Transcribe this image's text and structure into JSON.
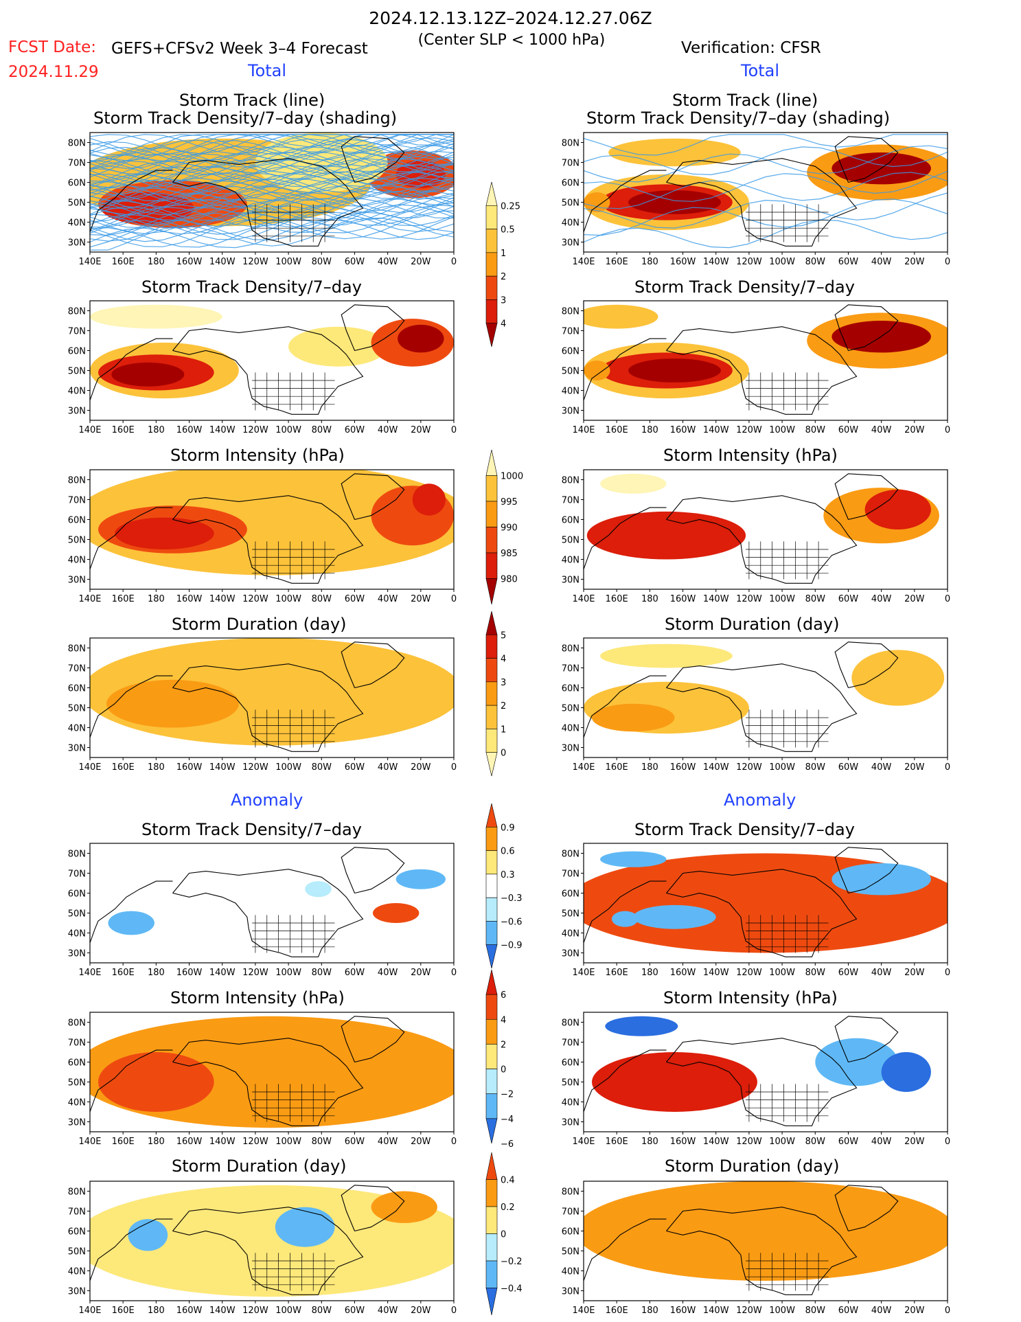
{
  "header": {
    "title": "2024.12.13.12Z–2024.12.27.06Z",
    "subtitle": "(Center SLP < 1000 hPa)",
    "fcst_label": "FCST Date:",
    "fcst_date": "2024.11.29",
    "forecast_label": "GEFS+CFSv2 Week 3–4 Forecast",
    "verification_label": "Verification: CFSR"
  },
  "sections": {
    "total": "Total",
    "anomaly": "Anomaly"
  },
  "panel_titles": {
    "storm_track_line": "Storm Track (line)",
    "storm_track_density_shading": "Storm Track Density/7–day (shading)",
    "storm_track_density": "Storm Track Density/7–day",
    "storm_intensity": "Storm Intensity (hPa)",
    "storm_duration": "Storm Duration (day)"
  },
  "colors": {
    "red_text": "#ff2020",
    "blue_text": "#2040ff",
    "darkred": "#a50000",
    "red": "#dc1e0a",
    "redorange": "#ee4a10",
    "orange": "#fa9b14",
    "lightorange": "#fcc23a",
    "yellow": "#fde87a",
    "lightyellow": "#fef5b6",
    "lightblue": "#b6ecfb",
    "skyblue": "#5fb8f5",
    "blue": "#2a6ee0",
    "trackline": "#3a9ae6"
  },
  "chart_data": {
    "type": "heatmap",
    "map": {
      "x_ticks": [
        "140E",
        "160E",
        "180",
        "160W",
        "140W",
        "120W",
        "100W",
        "80W",
        "60W",
        "40W",
        "20W",
        "0"
      ],
      "y_ticks": [
        "80N",
        "70N",
        "60N",
        "50N",
        "40N",
        "30N"
      ],
      "lon_range": [
        140,
        360
      ],
      "lat_range": [
        25,
        85
      ]
    },
    "colorbars": [
      {
        "name": "storm_track_density_total",
        "labels": [
          "0.25",
          "0.5",
          "1",
          "2",
          "3",
          "4"
        ],
        "colors": [
          "#fef5b6",
          "#fde87a",
          "#fcc23a",
          "#fa9b14",
          "#ee4a10",
          "#dc1e0a",
          "#a50000"
        ]
      },
      {
        "name": "storm_intensity_total",
        "labels": [
          "1000",
          "995",
          "990",
          "985",
          "980"
        ],
        "colors": [
          "#fef5b6",
          "#fcc23a",
          "#fa9b14",
          "#ee4a10",
          "#dc1e0a",
          "#a50000"
        ]
      },
      {
        "name": "storm_duration_total",
        "labels": [
          "5",
          "4",
          "3",
          "2",
          "1",
          "0"
        ],
        "colors": [
          "#a50000",
          "#dc1e0a",
          "#ee4a10",
          "#fa9b14",
          "#fcc23a",
          "#fde87a",
          "#fef5b6"
        ]
      },
      {
        "name": "storm_track_density_anomaly",
        "labels": [
          "0.9",
          "0.6",
          "0.3",
          "−0.3",
          "−0.6",
          "−0.9"
        ],
        "colors": [
          "#ee4a10",
          "#fa9b14",
          "#fde87a",
          "#ffffff",
          "#b6ecfb",
          "#5fb8f5",
          "#2a6ee0"
        ]
      },
      {
        "name": "storm_intensity_anomaly",
        "labels": [
          "6",
          "4",
          "2",
          "0",
          "−2",
          "−4",
          "−6"
        ],
        "colors": [
          "#dc1e0a",
          "#ee4a10",
          "#fa9b14",
          "#fde87a",
          "#b6ecfb",
          "#5fb8f5",
          "#2a6ee0"
        ]
      },
      {
        "name": "storm_duration_anomaly",
        "labels": [
          "0.4",
          "0.2",
          "0",
          "−0.2",
          "−0.4"
        ],
        "colors": [
          "#ee4a10",
          "#fa9b14",
          "#fde87a",
          "#b6ecfb",
          "#5fb8f5",
          "#2a6ee0"
        ]
      }
    ],
    "panels": [
      {
        "id": "fc-track",
        "column": "forecast",
        "section": "total",
        "variable": "storm_track",
        "blobs": [
          {
            "lon": 220,
            "lat": 60,
            "rlon": 90,
            "rlat": 22,
            "level": 3
          },
          {
            "lon": 190,
            "lat": 49,
            "rlon": 45,
            "rlat": 12,
            "level": 5
          },
          {
            "lon": 175,
            "lat": 47,
            "rlon": 28,
            "rlat": 8,
            "level": 6
          },
          {
            "lon": 335,
            "lat": 64,
            "rlon": 28,
            "rlat": 12,
            "level": 5
          },
          {
            "lon": 340,
            "lat": 64,
            "rlon": 15,
            "rlat": 7,
            "level": 6
          },
          {
            "lon": 280,
            "lat": 70,
            "rlon": 40,
            "rlat": 15,
            "level": 2
          }
        ]
      },
      {
        "id": "obs-track",
        "column": "verification",
        "section": "total",
        "variable": "storm_track",
        "blobs": [
          {
            "lon": 190,
            "lat": 50,
            "rlon": 50,
            "rlat": 14,
            "level": 3
          },
          {
            "lon": 190,
            "lat": 50,
            "rlon": 40,
            "rlat": 9,
            "level": 6
          },
          {
            "lon": 195,
            "lat": 50,
            "rlon": 28,
            "rlat": 6,
            "level": 7
          },
          {
            "lon": 320,
            "lat": 65,
            "rlon": 45,
            "rlat": 14,
            "level": 4
          },
          {
            "lon": 320,
            "lat": 67,
            "rlon": 30,
            "rlat": 8,
            "level": 7
          },
          {
            "lon": 195,
            "lat": 75,
            "rlon": 40,
            "rlat": 7,
            "level": 3
          },
          {
            "lon": 148,
            "lat": 50,
            "rlon": 8,
            "rlat": 5,
            "level": 4
          }
        ]
      },
      {
        "id": "fc-density",
        "column": "forecast",
        "section": "total",
        "variable": "storm_track_density",
        "blobs": [
          {
            "lon": 180,
            "lat": 77,
            "rlon": 40,
            "rlat": 6,
            "level": 1
          },
          {
            "lon": 185,
            "lat": 50,
            "rlon": 45,
            "rlat": 14,
            "level": 3
          },
          {
            "lon": 180,
            "lat": 49,
            "rlon": 35,
            "rlat": 9,
            "level": 6
          },
          {
            "lon": 175,
            "lat": 48,
            "rlon": 22,
            "rlat": 6,
            "level": 7
          },
          {
            "lon": 290,
            "lat": 62,
            "rlon": 30,
            "rlat": 10,
            "level": 2
          },
          {
            "lon": 335,
            "lat": 64,
            "rlon": 25,
            "rlat": 12,
            "level": 5
          },
          {
            "lon": 340,
            "lat": 66,
            "rlon": 14,
            "rlat": 7,
            "level": 7
          }
        ]
      },
      {
        "id": "obs-density",
        "column": "verification",
        "section": "total",
        "variable": "storm_track_density",
        "blobs": [
          {
            "lon": 190,
            "lat": 50,
            "rlon": 50,
            "rlat": 14,
            "level": 3
          },
          {
            "lon": 190,
            "lat": 50,
            "rlon": 40,
            "rlat": 9,
            "level": 6
          },
          {
            "lon": 195,
            "lat": 50,
            "rlon": 28,
            "rlat": 6,
            "level": 7
          },
          {
            "lon": 320,
            "lat": 65,
            "rlon": 45,
            "rlat": 14,
            "level": 4
          },
          {
            "lon": 320,
            "lat": 67,
            "rlon": 30,
            "rlat": 8,
            "level": 7
          },
          {
            "lon": 160,
            "lat": 77,
            "rlon": 25,
            "rlat": 6,
            "level": 3
          },
          {
            "lon": 148,
            "lat": 50,
            "rlon": 8,
            "rlat": 5,
            "level": 4
          }
        ]
      },
      {
        "id": "fc-intensity",
        "column": "forecast",
        "section": "total",
        "variable": "storm_intensity",
        "blobs": [
          {
            "lon": 250,
            "lat": 60,
            "rlon": 120,
            "rlat": 28,
            "level": 3
          },
          {
            "lon": 190,
            "lat": 55,
            "rlon": 45,
            "rlat": 12,
            "level": 5
          },
          {
            "lon": 185,
            "lat": 53,
            "rlon": 30,
            "rlat": 8,
            "level": 6
          },
          {
            "lon": 335,
            "lat": 62,
            "rlon": 25,
            "rlat": 15,
            "level": 5
          },
          {
            "lon": 345,
            "lat": 70,
            "rlon": 10,
            "rlat": 8,
            "level": 6
          }
        ]
      },
      {
        "id": "obs-intensity",
        "column": "verification",
        "section": "total",
        "variable": "storm_intensity",
        "blobs": [
          {
            "lon": 190,
            "lat": 52,
            "rlon": 48,
            "rlat": 12,
            "level": 6
          },
          {
            "lon": 320,
            "lat": 62,
            "rlon": 35,
            "rlat": 14,
            "level": 4
          },
          {
            "lon": 330,
            "lat": 65,
            "rlon": 20,
            "rlat": 10,
            "level": 6
          },
          {
            "lon": 170,
            "lat": 78,
            "rlon": 20,
            "rlat": 5,
            "level": 1
          }
        ]
      },
      {
        "id": "fc-duration",
        "column": "forecast",
        "section": "total",
        "variable": "storm_duration",
        "blobs": [
          {
            "lon": 250,
            "lat": 58,
            "rlon": 115,
            "rlat": 27,
            "level": 3
          },
          {
            "lon": 190,
            "lat": 52,
            "rlon": 40,
            "rlat": 12,
            "level": 4
          }
        ]
      },
      {
        "id": "obs-duration",
        "column": "verification",
        "section": "total",
        "variable": "storm_duration",
        "blobs": [
          {
            "lon": 190,
            "lat": 50,
            "rlon": 50,
            "rlat": 13,
            "level": 3
          },
          {
            "lon": 170,
            "lat": 45,
            "rlon": 25,
            "rlat": 7,
            "level": 4
          },
          {
            "lon": 330,
            "lat": 65,
            "rlon": 28,
            "rlat": 14,
            "level": 3
          },
          {
            "lon": 190,
            "lat": 76,
            "rlon": 40,
            "rlat": 6,
            "level": 2
          }
        ]
      },
      {
        "id": "fc-density-anom",
        "column": "forecast",
        "section": "anomaly",
        "variable": "storm_track_density",
        "blobs": [
          {
            "lon": 165,
            "lat": 45,
            "rlon": 14,
            "rlat": 6,
            "level": 1
          },
          {
            "lon": 340,
            "lat": 67,
            "rlon": 15,
            "rlat": 5,
            "level": 1
          },
          {
            "lon": 278,
            "lat": 62,
            "rlon": 8,
            "rlat": 4,
            "level": 2
          },
          {
            "lon": 325,
            "lat": 50,
            "rlon": 14,
            "rlat": 5,
            "level": 6
          },
          {
            "lon": 175,
            "lat": 77,
            "rlon": 20,
            "rlat": 4,
            "level": 3
          }
        ]
      },
      {
        "id": "obs-density-anom",
        "column": "verification",
        "section": "anomaly",
        "variable": "storm_track_density",
        "blobs": [
          {
            "lon": 250,
            "lat": 55,
            "rlon": 120,
            "rlat": 25,
            "level": 6
          },
          {
            "lon": 195,
            "lat": 48,
            "rlon": 25,
            "rlat": 6,
            "level": 1
          },
          {
            "lon": 320,
            "lat": 67,
            "rlon": 30,
            "rlat": 8,
            "level": 1
          },
          {
            "lon": 165,
            "lat": 47,
            "rlon": 8,
            "rlat": 4,
            "level": 1
          },
          {
            "lon": 170,
            "lat": 77,
            "rlon": 20,
            "rlat": 4,
            "level": 1
          }
        ]
      },
      {
        "id": "fc-intensity-anom",
        "column": "forecast",
        "section": "anomaly",
        "variable": "storm_intensity",
        "blobs": [
          {
            "lon": 250,
            "lat": 55,
            "rlon": 120,
            "rlat": 28,
            "level": 5
          },
          {
            "lon": 180,
            "lat": 50,
            "rlon": 35,
            "rlat": 15,
            "level": 6
          },
          {
            "lon": 300,
            "lat": 60,
            "rlon": 15,
            "rlat": 10,
            "level": 3
          },
          {
            "lon": 335,
            "lat": 47,
            "rlon": 15,
            "rlat": 6,
            "level": 3
          }
        ]
      },
      {
        "id": "obs-intensity-anom",
        "column": "verification",
        "section": "anomaly",
        "variable": "storm_intensity",
        "blobs": [
          {
            "lon": 195,
            "lat": 50,
            "rlon": 50,
            "rlat": 15,
            "level": 7
          },
          {
            "lon": 305,
            "lat": 60,
            "rlon": 25,
            "rlat": 12,
            "level": 1
          },
          {
            "lon": 335,
            "lat": 55,
            "rlon": 15,
            "rlat": 10,
            "level": 0
          },
          {
            "lon": 175,
            "lat": 78,
            "rlon": 22,
            "rlat": 5,
            "level": 0
          }
        ]
      },
      {
        "id": "fc-duration-anom",
        "column": "forecast",
        "section": "anomaly",
        "variable": "storm_duration",
        "blobs": [
          {
            "lon": 250,
            "lat": 55,
            "rlon": 120,
            "rlat": 28,
            "level": 4
          },
          {
            "lon": 270,
            "lat": 62,
            "rlon": 18,
            "rlat": 10,
            "level": 1
          },
          {
            "lon": 175,
            "lat": 58,
            "rlon": 12,
            "rlat": 8,
            "level": 1
          },
          {
            "lon": 330,
            "lat": 72,
            "rlon": 20,
            "rlat": 8,
            "level": 5
          }
        ]
      },
      {
        "id": "obs-duration-anom",
        "column": "verification",
        "section": "anomaly",
        "variable": "storm_duration",
        "blobs": [
          {
            "lon": 250,
            "lat": 60,
            "rlon": 115,
            "rlat": 25,
            "level": 5
          },
          {
            "lon": 165,
            "lat": 45,
            "rlon": 10,
            "rlat": 4,
            "level": 3
          }
        ]
      }
    ]
  }
}
